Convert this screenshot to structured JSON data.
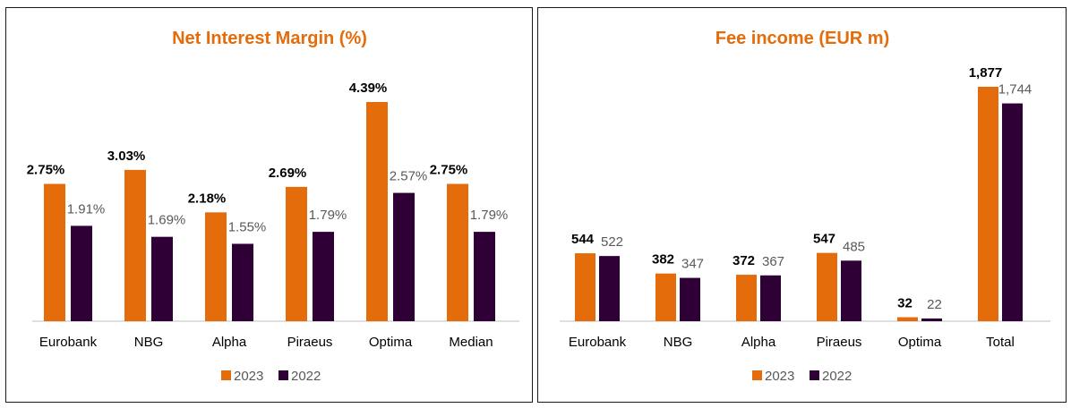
{
  "colors": {
    "current": "#E46C0A",
    "previous": "#2E0036",
    "title": "#E46C0A",
    "axis": "#BFBFBF"
  },
  "chart_data": [
    {
      "type": "bar",
      "title": "Net Interest Margin (%)",
      "categories": [
        "Eurobank",
        "NBG",
        "Alpha",
        "Piraeus",
        "Optima",
        "Median"
      ],
      "series": [
        {
          "name": "2023",
          "values": [
            2.75,
            3.03,
            2.18,
            2.69,
            4.39,
            2.75
          ],
          "labels": [
            "2.75%",
            "3.03%",
            "2.18%",
            "2.69%",
            "4.39%",
            "2.75%"
          ]
        },
        {
          "name": "2022",
          "values": [
            1.91,
            1.69,
            1.55,
            1.79,
            2.57,
            1.79
          ],
          "labels": [
            "1.91%",
            "1.69%",
            "1.55%",
            "1.79%",
            "2.57%",
            "1.79%"
          ]
        }
      ],
      "ylim": [
        0,
        4.39
      ],
      "legend": "bottom"
    },
    {
      "type": "bar",
      "title": "Fee income (EUR m)",
      "categories": [
        "Eurobank",
        "NBG",
        "Alpha",
        "Piraeus",
        "Optima",
        "Total"
      ],
      "series": [
        {
          "name": "2023",
          "values": [
            544,
            382,
            372,
            547,
            32,
            1877
          ],
          "labels": [
            "544",
            "382",
            "372",
            "547",
            "32",
            "1,877"
          ]
        },
        {
          "name": "2022",
          "values": [
            522,
            347,
            367,
            485,
            22,
            1744
          ],
          "labels": [
            "522",
            "347",
            "367",
            "485",
            "22",
            "1,744"
          ]
        }
      ],
      "ylim": [
        0,
        1877
      ],
      "legend": "bottom"
    }
  ]
}
